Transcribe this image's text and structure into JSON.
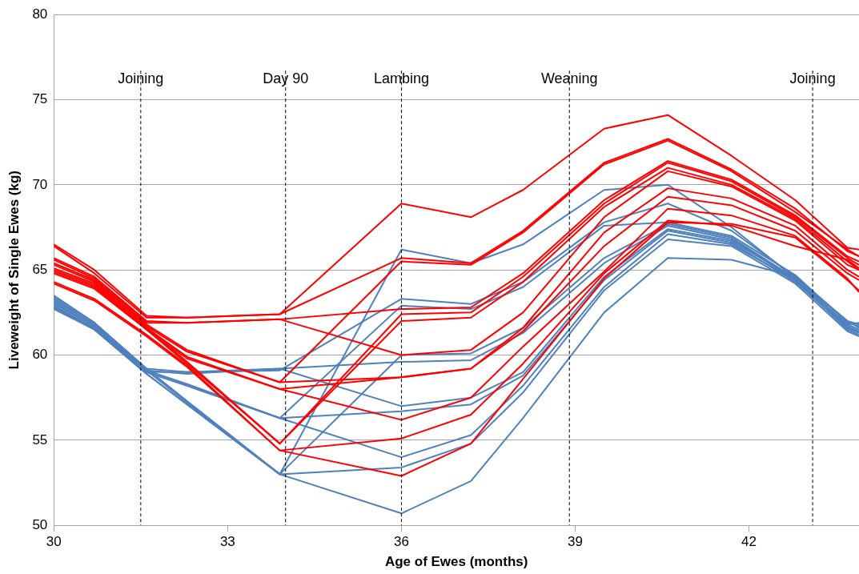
{
  "chart_data": {
    "type": "line",
    "xlabel": "Age of Ewes (months)",
    "ylabel": "Liveweight of Single Ewes (kg)",
    "x": [
      30,
      30.7,
      31.6,
      32.3,
      33.9,
      36,
      37.2,
      38.1,
      39.5,
      40.6,
      41.7,
      42.8,
      43.7,
      43.9
    ],
    "xlim": [
      30,
      43.9
    ],
    "xticks": [
      30,
      33,
      36,
      39,
      42
    ],
    "ylim": [
      50,
      80
    ],
    "yticks": [
      50,
      55,
      60,
      65,
      70,
      75,
      80
    ],
    "grid": "y",
    "legend": false,
    "marker": "none",
    "line_style": "solid",
    "series": [
      {
        "color": "#ff0000",
        "values": [
          66.5,
          65.0,
          62.3,
          62.2,
          62.4,
          68.9,
          68.1,
          69.7,
          73.3,
          74.1,
          71.7,
          69.1,
          66.3,
          66.2
        ]
      },
      {
        "color": "#ff0000",
        "values": [
          66.4,
          64.8,
          62.2,
          62.2,
          62.4,
          65.7,
          65.4,
          67.3,
          71.3,
          72.7,
          70.9,
          68.6,
          66.1,
          65.8
        ]
      },
      {
        "color": "#ff0000",
        "values": [
          65.7,
          64.6,
          62.0,
          61.9,
          62.1,
          62.7,
          62.8,
          64.8,
          69.1,
          71.4,
          70.3,
          68.2,
          65.8,
          65.5
        ]
      },
      {
        "color": "#ff0000",
        "values": [
          65.6,
          64.5,
          61.9,
          61.9,
          62.1,
          60.0,
          60.3,
          62.5,
          68.1,
          70.8,
          69.9,
          67.9,
          65.3,
          65.0
        ]
      },
      {
        "color": "#ff0000",
        "values": [
          65.4,
          64.4,
          61.8,
          60.3,
          58.4,
          65.5,
          65.3,
          67.2,
          71.2,
          72.6,
          70.8,
          68.4,
          66.2,
          65.8
        ]
      },
      {
        "color": "#ff0000",
        "values": [
          65.3,
          64.3,
          61.7,
          60.2,
          58.4,
          58.7,
          59.2,
          61.6,
          67.2,
          69.8,
          69.2,
          67.6,
          65.0,
          64.6
        ]
      },
      {
        "color": "#ff0000",
        "values": [
          65.1,
          64.2,
          61.6,
          59.9,
          58.0,
          58.7,
          59.2,
          61.4,
          66.4,
          69.3,
          68.8,
          67.3,
          64.8,
          64.4
        ]
      },
      {
        "color": "#ff0000",
        "values": [
          65.0,
          64.1,
          61.5,
          59.8,
          58.0,
          56.2,
          57.5,
          60.5,
          64.9,
          68.6,
          68.2,
          67.0,
          64.5,
          63.7
        ]
      },
      {
        "color": "#ff0000",
        "values": [
          64.9,
          64.0,
          61.6,
          59.6,
          54.8,
          62.4,
          62.5,
          64.6,
          68.9,
          71.3,
          70.2,
          68.1,
          65.7,
          65.3
        ]
      },
      {
        "color": "#ff0000",
        "values": [
          64.8,
          63.9,
          61.5,
          59.5,
          54.8,
          62.0,
          62.2,
          64.3,
          68.7,
          71.0,
          70.0,
          68.0,
          65.5,
          65.0
        ]
      },
      {
        "color": "#ff0000",
        "values": [
          64.3,
          63.3,
          61.2,
          59.4,
          54.4,
          55.1,
          56.5,
          59.5,
          64.8,
          67.9,
          67.6,
          66.4,
          65.6,
          65.1
        ]
      },
      {
        "color": "#ff0000",
        "values": [
          64.2,
          63.2,
          61.1,
          59.3,
          54.4,
          52.9,
          54.8,
          58.6,
          64.5,
          67.8,
          67.7,
          66.9,
          64.4,
          63.8
        ]
      },
      {
        "color": "#4f81bd",
        "values": [
          63.5,
          61.9,
          59.2,
          57.3,
          53.0,
          66.2,
          65.4,
          66.5,
          69.7,
          70.0,
          67.5,
          64.5,
          62.0,
          61.6
        ]
      },
      {
        "color": "#4f81bd",
        "values": [
          63.4,
          61.9,
          59.2,
          59.0,
          59.1,
          63.3,
          63.0,
          64.3,
          67.8,
          68.9,
          67.3,
          64.6,
          62.0,
          61.8
        ]
      },
      {
        "color": "#4f81bd",
        "values": [
          63.3,
          61.8,
          59.1,
          58.3,
          56.3,
          62.9,
          62.7,
          64.0,
          67.6,
          67.8,
          67.0,
          64.7,
          61.9,
          61.7
        ]
      },
      {
        "color": "#4f81bd",
        "values": [
          63.2,
          61.8,
          59.1,
          57.2,
          53.0,
          60.0,
          60.1,
          61.6,
          65.7,
          67.7,
          66.9,
          64.5,
          61.8,
          61.5
        ]
      },
      {
        "color": "#4f81bd",
        "values": [
          63.1,
          61.7,
          59.1,
          58.9,
          59.2,
          59.6,
          59.7,
          61.3,
          65.4,
          67.6,
          66.8,
          64.4,
          61.8,
          61.9
        ]
      },
      {
        "color": "#4f81bd",
        "values": [
          63.0,
          61.7,
          59.0,
          59.0,
          59.2,
          57.0,
          57.5,
          59.0,
          64.6,
          67.4,
          66.7,
          64.5,
          61.7,
          61.4
        ]
      },
      {
        "color": "#4f81bd",
        "values": [
          62.9,
          61.6,
          59.0,
          58.2,
          56.3,
          56.7,
          57.1,
          58.8,
          64.4,
          67.3,
          66.6,
          64.3,
          61.6,
          61.3
        ]
      },
      {
        "color": "#4f81bd",
        "values": [
          62.8,
          61.6,
          59.0,
          58.2,
          56.3,
          54.0,
          55.3,
          58.2,
          64.0,
          67.1,
          66.5,
          64.4,
          61.5,
          61.2
        ]
      },
      {
        "color": "#4f81bd",
        "values": [
          62.8,
          61.5,
          58.9,
          57.1,
          53.0,
          53.4,
          54.8,
          57.8,
          63.8,
          66.8,
          66.4,
          64.2,
          61.4,
          61.1
        ]
      },
      {
        "color": "#4f81bd",
        "values": [
          62.7,
          61.5,
          58.9,
          57.1,
          53.0,
          50.7,
          52.6,
          56.3,
          62.5,
          65.7,
          65.6,
          64.6,
          61.6,
          61.4
        ]
      }
    ],
    "ref_lines": [
      {
        "axis": "x",
        "value": 31.5,
        "label": "Joining",
        "color": "#000000",
        "line_style": "dashed"
      },
      {
        "axis": "x",
        "value": 34.0,
        "label": "Day 90",
        "color": "#000000",
        "line_style": "dashed"
      },
      {
        "axis": "x",
        "value": 36.0,
        "label": "Lambing",
        "color": "#000000",
        "line_style": "dashed"
      },
      {
        "axis": "x",
        "value": 38.9,
        "label": "Weaning",
        "color": "#000000",
        "line_style": "dashed"
      },
      {
        "axis": "x",
        "value": 43.1,
        "label": "Joining",
        "color": "#000000",
        "line_style": "dashed"
      }
    ]
  }
}
